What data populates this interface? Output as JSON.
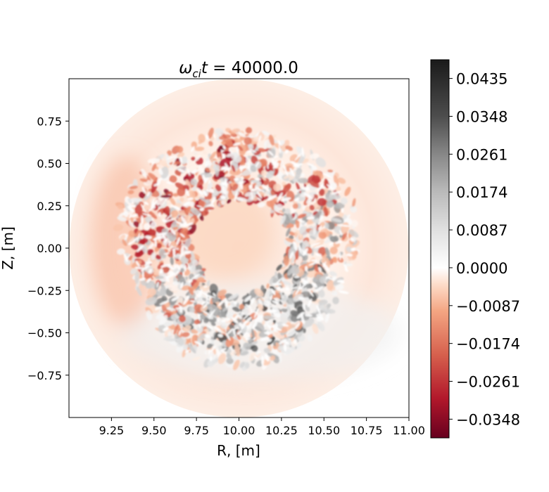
{
  "chart_data": {
    "type": "heatmap",
    "title": "ω_ci t = 40000.0",
    "title_parts": {
      "omega": "ω",
      "sub": "ci",
      "t": "t",
      "rest": " = 40000.0"
    },
    "xlabel": "R, [m]",
    "ylabel": "Z, [m]",
    "xlim": [
      9.0,
      11.0
    ],
    "ylim": [
      -1.0,
      1.0
    ],
    "x_ticks": [
      9.25,
      9.5,
      9.75,
      10.0,
      10.25,
      10.5,
      10.75,
      11.0
    ],
    "x_tick_labels": [
      "9.25",
      "9.50",
      "9.75",
      "10.00",
      "10.25",
      "10.50",
      "10.75",
      "11.00"
    ],
    "y_ticks": [
      0.75,
      0.5,
      0.25,
      0.0,
      -0.25,
      -0.5,
      -0.75
    ],
    "y_tick_labels": [
      "0.75",
      "0.50",
      "0.25",
      "0.00",
      "−0.25",
      "−0.50",
      "−0.75"
    ],
    "domain": {
      "shape": "circle",
      "center": [
        10.0,
        0.0
      ],
      "radius": 1.0
    },
    "colorbar": {
      "colormap": "RdGy_r",
      "vmin": -0.0391,
      "vmax": 0.0478,
      "ticks": [
        0.0435,
        0.0348,
        0.0261,
        0.0174,
        0.0087,
        0.0,
        -0.0087,
        -0.0174,
        -0.0261,
        -0.0348
      ],
      "tick_labels": [
        "0.0435",
        "0.0348",
        "0.0261",
        "0.0174",
        "0.0087",
        "0.0000",
        "−0.0087",
        "−0.0174",
        "−0.0261",
        "−0.0348"
      ],
      "stops": [
        {
          "v": -0.0391,
          "color": "#67001f"
        },
        {
          "v": -0.03,
          "color": "#b2182b"
        },
        {
          "v": -0.02,
          "color": "#d6604d"
        },
        {
          "v": -0.01,
          "color": "#f4a582"
        },
        {
          "v": -0.004,
          "color": "#fddbc7"
        },
        {
          "v": 0.0,
          "color": "#ffffff"
        },
        {
          "v": 0.0087,
          "color": "#e0e0e0"
        },
        {
          "v": 0.0174,
          "color": "#bababa"
        },
        {
          "v": 0.0261,
          "color": "#878787"
        },
        {
          "v": 0.0348,
          "color": "#4d4d4d"
        },
        {
          "v": 0.0478,
          "color": "#1a1a1a"
        }
      ]
    }
  }
}
